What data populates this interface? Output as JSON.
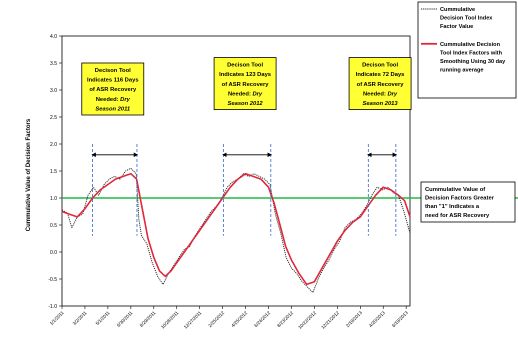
{
  "chart_data": {
    "type": "line",
    "title": "",
    "xlabel": "",
    "ylabel": "Cummulative Value of Decision Factors",
    "ylim": [
      -1.0,
      4.0
    ],
    "yticks": [
      "4.0",
      "3.5",
      "3.0",
      "2.5",
      "2.0",
      "1.5",
      "1.0",
      "0.5",
      "0.0",
      "-0.5",
      "-1.0"
    ],
    "xlim": [
      "2011-01-01",
      "2013-06-29"
    ],
    "xticks": [
      {
        "date": "2011-01-01",
        "label": "1/1/2011"
      },
      {
        "date": "2011-03-02",
        "label": "3/2/2011"
      },
      {
        "date": "2011-05-01",
        "label": "5/1/2011"
      },
      {
        "date": "2011-06-30",
        "label": "6/30/2011"
      },
      {
        "date": "2011-08-29",
        "label": "8/29/2011"
      },
      {
        "date": "2011-10/28",
        "label": "10/28/2011"
      },
      {
        "date": "2011-12-27",
        "label": "12/27/2011"
      },
      {
        "date": "2012-02-25",
        "label": "2/25/2012"
      },
      {
        "date": "2012-04-25",
        "label": "4/25/2012"
      },
      {
        "date": "2012-06-24",
        "label": "6/24/2012"
      },
      {
        "date": "2012-08-23",
        "label": "8/23/2012"
      },
      {
        "date": "2012-10-22",
        "label": "10/22/2012"
      },
      {
        "date": "2012-12-21",
        "label": "12/21/2012"
      },
      {
        "date": "2013-02-19",
        "label": "2/19/2013"
      },
      {
        "date": "2013-04-20",
        "label": "4/20/2013"
      },
      {
        "date": "2013-06-19",
        "label": "6/19/2013"
      }
    ],
    "reference_line": {
      "y": 1.0,
      "color": "#22bb44"
    },
    "series": [
      {
        "name": "Cummulative Decision Tool Index Factor Value",
        "style": "dotted",
        "color": "#222222",
        "points": [
          [
            "2011-01-01",
            0.78
          ],
          [
            "2011-01-15",
            0.72
          ],
          [
            "2011-01-27",
            0.45
          ],
          [
            "2011-02-10",
            0.65
          ],
          [
            "2011-02-24",
            0.7
          ],
          [
            "2011-03-10",
            1.05
          ],
          [
            "2011-03-24",
            1.2
          ],
          [
            "2011-04-07",
            1.05
          ],
          [
            "2011-04-21",
            1.25
          ],
          [
            "2011-05-05",
            1.35
          ],
          [
            "2011-05-19",
            1.4
          ],
          [
            "2011-06-02",
            1.35
          ],
          [
            "2011-06-16",
            1.5
          ],
          [
            "2011-06-30",
            1.55
          ],
          [
            "2011-07-14",
            1.45
          ],
          [
            "2011-07-21",
            0.6
          ],
          [
            "2011-07-28",
            0.3
          ],
          [
            "2011-08-11",
            0.15
          ],
          [
            "2011-08-25",
            -0.2
          ],
          [
            "2011-09-08",
            -0.45
          ],
          [
            "2011-09-22",
            -0.6
          ],
          [
            "2011-10-06",
            -0.4
          ],
          [
            "2011-10-20",
            -0.25
          ],
          [
            "2011-11-03",
            -0.1
          ],
          [
            "2011-11-17",
            0.05
          ],
          [
            "2011-12-01",
            0.1
          ],
          [
            "2011-12-15",
            0.3
          ],
          [
            "2011-12-29",
            0.45
          ],
          [
            "2012-01-12",
            0.6
          ],
          [
            "2012-01-26",
            0.75
          ],
          [
            "2012-02-09",
            0.85
          ],
          [
            "2012-02-23",
            1.0
          ],
          [
            "2012-03-08",
            1.2
          ],
          [
            "2012-03-22",
            1.3
          ],
          [
            "2012-04-05",
            1.35
          ],
          [
            "2012-04-19",
            1.45
          ],
          [
            "2012-05-03",
            1.4
          ],
          [
            "2012-05-17",
            1.45
          ],
          [
            "2012-05-31",
            1.4
          ],
          [
            "2012-06-14",
            1.35
          ],
          [
            "2012-06-28",
            1.25
          ],
          [
            "2012-07-12",
            0.7
          ],
          [
            "2012-07-26",
            0.35
          ],
          [
            "2012-08-09",
            -0.1
          ],
          [
            "2012-08-23",
            -0.3
          ],
          [
            "2012-09-06",
            -0.4
          ],
          [
            "2012-09-20",
            -0.55
          ],
          [
            "2012-10-04",
            -0.65
          ],
          [
            "2012-10-18",
            -0.75
          ],
          [
            "2012-11-01",
            -0.5
          ],
          [
            "2012-11-15",
            -0.3
          ],
          [
            "2012-11-29",
            -0.15
          ],
          [
            "2012-12-13",
            0.05
          ],
          [
            "2012-12-27",
            0.2
          ],
          [
            "2013-01-10",
            0.45
          ],
          [
            "2013-01-24",
            0.55
          ],
          [
            "2013-02-07",
            0.6
          ],
          [
            "2013-02-21",
            0.7
          ],
          [
            "2013-03-07",
            0.85
          ],
          [
            "2013-03-21",
            1.05
          ],
          [
            "2013-04-04",
            1.2
          ],
          [
            "2013-04-18",
            1.15
          ],
          [
            "2013-05-02",
            1.2
          ],
          [
            "2013-05-16",
            1.1
          ],
          [
            "2013-05-30",
            1.05
          ],
          [
            "2013-06-13",
            0.75
          ],
          [
            "2013-06-29",
            0.35
          ]
        ]
      },
      {
        "name": "Cummulative Decision Tool Index Factors with Smoothing Using 30 day running average",
        "style": "solid",
        "color": "#e0283c",
        "points": [
          [
            "2011-01-01",
            0.75
          ],
          [
            "2011-01-21",
            0.7
          ],
          [
            "2011-02-10",
            0.65
          ],
          [
            "2011-03-02",
            0.8
          ],
          [
            "2011-03-22",
            1.0
          ],
          [
            "2011-04-11",
            1.15
          ],
          [
            "2011-05-01",
            1.25
          ],
          [
            "2011-05-21",
            1.35
          ],
          [
            "2011-06-10",
            1.4
          ],
          [
            "2011-06-30",
            1.45
          ],
          [
            "2011-07-15",
            1.35
          ],
          [
            "2011-07-30",
            0.8
          ],
          [
            "2011-08-14",
            0.25
          ],
          [
            "2011-08-29",
            -0.1
          ],
          [
            "2011-09-13",
            -0.35
          ],
          [
            "2011-09-28",
            -0.45
          ],
          [
            "2011-10-13",
            -0.35
          ],
          [
            "2011-10-28",
            -0.2
          ],
          [
            "2011-11-17",
            0.0
          ],
          [
            "2011-12-07",
            0.2
          ],
          [
            "2011-12-27",
            0.4
          ],
          [
            "2012-01-16",
            0.6
          ],
          [
            "2012-02-05",
            0.8
          ],
          [
            "2012-02-25",
            1.0
          ],
          [
            "2012-03-16",
            1.2
          ],
          [
            "2012-04-05",
            1.35
          ],
          [
            "2012-04-25",
            1.45
          ],
          [
            "2012-05-15",
            1.4
          ],
          [
            "2012-06-04",
            1.35
          ],
          [
            "2012-06-24",
            1.2
          ],
          [
            "2012-07-09",
            0.9
          ],
          [
            "2012-07-24",
            0.5
          ],
          [
            "2012-08-08",
            0.1
          ],
          [
            "2012-08-23",
            -0.15
          ],
          [
            "2012-09-12",
            -0.4
          ],
          [
            "2012-10-02",
            -0.6
          ],
          [
            "2012-10-22",
            -0.55
          ],
          [
            "2012-11-11",
            -0.3
          ],
          [
            "2012-12-01",
            -0.05
          ],
          [
            "2012-12-21",
            0.2
          ],
          [
            "2013-01-10",
            0.4
          ],
          [
            "2013-01-30",
            0.55
          ],
          [
            "2013-02-19",
            0.65
          ],
          [
            "2013-03-11",
            0.85
          ],
          [
            "2013-03-31",
            1.05
          ],
          [
            "2013-04-20",
            1.2
          ],
          [
            "2013-05-10",
            1.15
          ],
          [
            "2013-05-30",
            1.05
          ],
          [
            "2013-06-15",
            0.95
          ],
          [
            "2013-06-29",
            0.65
          ]
        ]
      }
    ],
    "range_markers": [
      {
        "start": "2011-03-22",
        "end": "2011-07-16"
      },
      {
        "start": "2012-02-27",
        "end": "2012-06-30"
      },
      {
        "start": "2013-03-12",
        "end": "2013-05-23"
      }
    ],
    "range_marker_y": 1.8,
    "callouts": [
      {
        "lines": [
          "Decison Tool",
          "Indicates 116 Days",
          "of ASR Recovery",
          "Needed: Dry",
          "Season 2011"
        ],
        "italic_from": 3
      },
      {
        "lines": [
          "Decison Tool",
          "Indicates 123 Days",
          "of ASR Recovery",
          "Needed: Dry",
          "Season 2012"
        ],
        "italic_from": 3
      },
      {
        "lines": [
          "Decison Tool",
          "Indicates 72 Days",
          "of ASR Recovery",
          "Needed: Dry",
          "Season 2013"
        ],
        "italic_from": 3
      }
    ],
    "legend": {
      "placement": "right",
      "entries": [
        {
          "lines": [
            "Cummulative",
            "Decision Tool Index",
            "Factor Value"
          ],
          "style": "dotted",
          "color": "#222222"
        },
        {
          "lines": [
            "Cummulative Decision",
            "Tool Index Factors with",
            "Smoothing Using 30 day",
            "running average"
          ],
          "style": "solid",
          "color": "#e0283c"
        }
      ]
    },
    "annotation": {
      "lines": [
        "Cummulative Value of",
        "Decision Factors Greater",
        "than \"1\" Indicates a",
        "need for ASR Recovery"
      ]
    }
  }
}
